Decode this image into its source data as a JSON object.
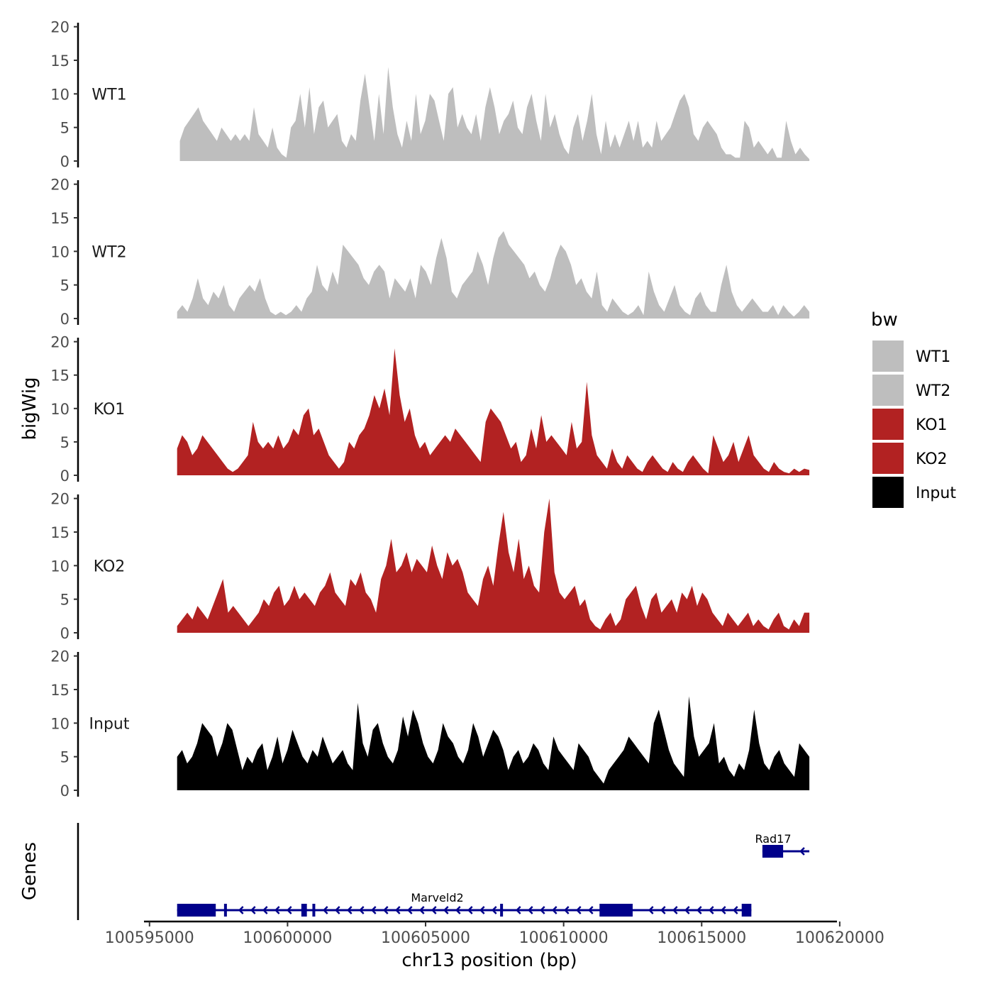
{
  "chart_data": {
    "type": "area",
    "title": "",
    "ylabel": "bigWig",
    "genes_label": "Genes",
    "xlabel": "chr13 position (bp)",
    "xlim": [
      100594800,
      100619900
    ],
    "ylim": [
      0,
      20
    ],
    "x_ticks": [
      100595000,
      100600000,
      100605000,
      100610000,
      100615000,
      100620000
    ],
    "x_tick_labels": [
      "100595000",
      "100600000",
      "100605000",
      "100610000",
      "100615000",
      "100620000"
    ],
    "y_ticks": [
      0,
      5,
      10,
      15,
      20
    ],
    "y_tick_labels": [
      "0",
      "5",
      "10",
      "15",
      "20"
    ],
    "legend": {
      "title": "bw",
      "position": "right",
      "entries": [
        {
          "label": "WT1",
          "color": "#BEBEBE"
        },
        {
          "label": "WT2",
          "color": "#BEBEBE"
        },
        {
          "label": "KO1",
          "color": "#B22222"
        },
        {
          "label": "KO2",
          "color": "#B22222"
        },
        {
          "label": "Input",
          "color": "#000000"
        }
      ]
    },
    "series": [
      {
        "name": "WT1",
        "color": "#BEBEBE",
        "x_start": 100596100,
        "x_end": 100618900,
        "values": [
          3,
          5,
          6,
          7,
          8,
          6,
          5,
          4,
          3,
          5,
          4,
          3,
          4,
          3,
          4,
          3,
          8,
          4,
          3,
          2,
          5,
          2,
          1,
          0.5,
          5,
          6,
          10,
          5,
          11,
          4,
          8,
          9,
          5,
          6,
          7,
          3,
          2,
          4,
          3,
          9,
          13,
          8,
          3,
          10,
          4,
          14,
          8,
          4,
          2,
          6,
          3,
          10,
          4,
          6,
          10,
          9,
          6,
          3,
          10,
          11,
          5,
          7,
          5,
          4,
          7,
          3,
          8,
          11,
          8,
          4,
          6,
          7,
          9,
          5,
          4,
          8,
          10,
          6,
          3,
          10,
          5,
          7,
          4,
          2,
          1,
          5,
          7,
          3,
          6,
          10,
          4,
          1,
          6,
          2,
          4,
          2,
          4,
          6,
          3,
          6,
          2,
          3,
          2,
          6,
          3,
          4,
          5,
          7,
          9,
          10,
          8,
          4,
          3,
          5,
          6,
          5,
          4,
          2,
          1,
          1,
          0.5,
          0.5,
          6,
          5,
          2,
          3,
          2,
          1,
          2,
          0.5,
          0.5,
          6,
          3,
          1,
          2,
          1,
          0.3
        ]
      },
      {
        "name": "WT2",
        "color": "#BEBEBE",
        "x_start": 100596000,
        "x_end": 100618900,
        "values": [
          1,
          2,
          1,
          3,
          6,
          3,
          2,
          4,
          3,
          5,
          2,
          1,
          3,
          4,
          5,
          4,
          6,
          3,
          1,
          0.5,
          1,
          0.5,
          1,
          2,
          1,
          3,
          4,
          8,
          5,
          4,
          7,
          5,
          11,
          10,
          9,
          8,
          6,
          5,
          7,
          8,
          7,
          3,
          6,
          5,
          4,
          6,
          3,
          8,
          7,
          5,
          9,
          12,
          9,
          4,
          3,
          5,
          6,
          7,
          10,
          8,
          5,
          9,
          12,
          13,
          11,
          10,
          9,
          8,
          6,
          7,
          5,
          4,
          6,
          9,
          11,
          10,
          8,
          5,
          6,
          4,
          3,
          7,
          2,
          1,
          3,
          2,
          1,
          0.5,
          1,
          2,
          0.5,
          7,
          4,
          2,
          1,
          3,
          5,
          2,
          1,
          0.5,
          3,
          4,
          2,
          1,
          1,
          5,
          8,
          4,
          2,
          1,
          2,
          3,
          2,
          1,
          1,
          2,
          0.5,
          2,
          1,
          0.3,
          1,
          2,
          1
        ]
      },
      {
        "name": "KO1",
        "color": "#B22222",
        "x_start": 100596000,
        "x_end": 100618900,
        "values": [
          4,
          6,
          5,
          3,
          4,
          6,
          5,
          4,
          3,
          2,
          1,
          0.5,
          1,
          2,
          3,
          8,
          5,
          4,
          5,
          4,
          6,
          4,
          5,
          7,
          6,
          9,
          10,
          6,
          7,
          5,
          3,
          2,
          1,
          2,
          5,
          4,
          6,
          7,
          9,
          12,
          10,
          13,
          9,
          19,
          12,
          8,
          10,
          6,
          4,
          5,
          3,
          4,
          5,
          6,
          5,
          7,
          6,
          5,
          4,
          3,
          2,
          8,
          10,
          9,
          8,
          6,
          4,
          5,
          2,
          3,
          7,
          4,
          9,
          5,
          6,
          5,
          4,
          3,
          8,
          4,
          5,
          14,
          6,
          3,
          2,
          1,
          4,
          2,
          1,
          3,
          2,
          1,
          0.5,
          2,
          3,
          2,
          1,
          0.5,
          2,
          1,
          0.5,
          2,
          3,
          2,
          1,
          0.3,
          6,
          4,
          2,
          3,
          5,
          2,
          4,
          6,
          3,
          2,
          1,
          0.5,
          2,
          1,
          0.5,
          0.3,
          1,
          0.5,
          1,
          0.8
        ]
      },
      {
        "name": "KO2",
        "color": "#B22222",
        "x_start": 100596000,
        "x_end": 100618900,
        "values": [
          1,
          2,
          3,
          2,
          4,
          3,
          2,
          4,
          6,
          8,
          3,
          4,
          3,
          2,
          1,
          2,
          3,
          5,
          4,
          6,
          7,
          4,
          5,
          7,
          5,
          6,
          5,
          4,
          6,
          7,
          9,
          6,
          5,
          4,
          8,
          7,
          9,
          6,
          5,
          3,
          8,
          10,
          14,
          9,
          10,
          12,
          9,
          11,
          10,
          9,
          13,
          10,
          8,
          12,
          10,
          11,
          9,
          6,
          5,
          4,
          8,
          10,
          7,
          13,
          18,
          12,
          9,
          14,
          8,
          10,
          7,
          6,
          15,
          20,
          9,
          6,
          5,
          6,
          7,
          4,
          5,
          2,
          1,
          0.5,
          2,
          3,
          1,
          2,
          5,
          6,
          7,
          4,
          2,
          5,
          6,
          3,
          4,
          5,
          3,
          6,
          5,
          7,
          4,
          6,
          5,
          3,
          2,
          1,
          3,
          2,
          1,
          2,
          3,
          1,
          2,
          1,
          0.5,
          2,
          3,
          1,
          0.5,
          2,
          1,
          3,
          3
        ]
      },
      {
        "name": "Input",
        "color": "#000000",
        "x_start": 100596000,
        "x_end": 100618900,
        "values": [
          5,
          6,
          4,
          5,
          7,
          10,
          9,
          8,
          5,
          7,
          10,
          9,
          6,
          3,
          5,
          4,
          6,
          7,
          3,
          5,
          8,
          4,
          6,
          9,
          7,
          5,
          4,
          6,
          5,
          8,
          6,
          4,
          5,
          6,
          4,
          3,
          13,
          7,
          5,
          9,
          10,
          7,
          5,
          4,
          6,
          11,
          8,
          12,
          10,
          7,
          5,
          4,
          6,
          10,
          8,
          7,
          5,
          4,
          6,
          10,
          8,
          5,
          7,
          9,
          8,
          6,
          3,
          5,
          6,
          4,
          5,
          7,
          6,
          4,
          3,
          8,
          6,
          5,
          4,
          3,
          7,
          6,
          5,
          3,
          2,
          1,
          3,
          4,
          5,
          6,
          8,
          7,
          6,
          5,
          4,
          10,
          12,
          9,
          6,
          4,
          3,
          2,
          14,
          8,
          5,
          6,
          7,
          10,
          4,
          5,
          3,
          2,
          4,
          3,
          6,
          12,
          7,
          4,
          3,
          5,
          6,
          4,
          3,
          2,
          7,
          6,
          5
        ]
      }
    ],
    "genes": [
      {
        "name": "Rad17",
        "start": 100617200,
        "end": 100618900,
        "strand": "-",
        "exons": [
          [
            100617200,
            100617950
          ]
        ]
      },
      {
        "name": "Marveld2",
        "start": 100596000,
        "end": 100616800,
        "strand": "-",
        "exons": [
          [
            100596000,
            100597400
          ],
          [
            100597700,
            100597780
          ],
          [
            100600500,
            100600700
          ],
          [
            100600900,
            100601000
          ],
          [
            100607700,
            100607780
          ],
          [
            100611300,
            100612500
          ],
          [
            100616450,
            100616800
          ]
        ]
      }
    ]
  }
}
